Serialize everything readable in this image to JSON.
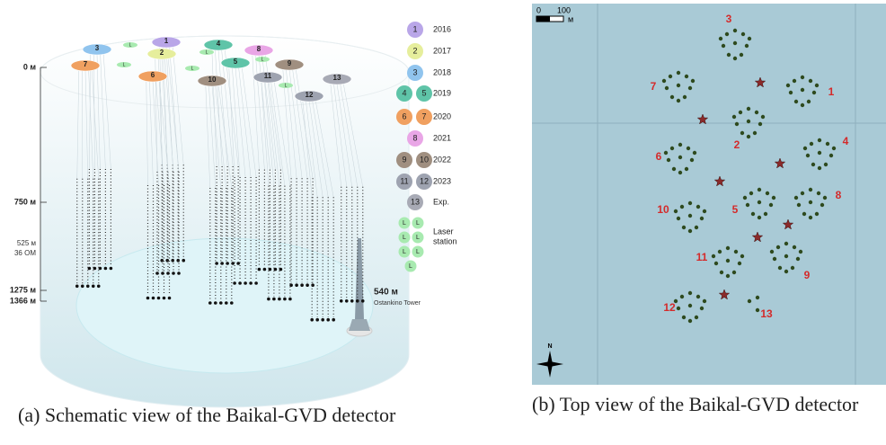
{
  "panel_a": {
    "depth_labels": [
      "0 м",
      "750 м",
      "1275 м",
      "1366 м"
    ],
    "span_labels": [
      "525 м",
      "36 OM"
    ],
    "tower": {
      "height": "540 м",
      "name": "Ostankino Tower"
    },
    "clusters": [
      "1",
      "2",
      "3",
      "4",
      "5",
      "6",
      "7",
      "8",
      "9",
      "10",
      "11",
      "12",
      "13"
    ],
    "legend": [
      {
        "badges": [
          "1"
        ],
        "year": "2016"
      },
      {
        "badges": [
          "2"
        ],
        "year": "2017"
      },
      {
        "badges": [
          "3"
        ],
        "year": "2018"
      },
      {
        "badges": [
          "4",
          "5"
        ],
        "year": "2019"
      },
      {
        "badges": [
          "6",
          "7"
        ],
        "year": "2020"
      },
      {
        "badges": [
          "8"
        ],
        "year": "2021"
      },
      {
        "badges": [
          "9",
          "10"
        ],
        "year": "2022"
      },
      {
        "badges": [
          "11",
          "12"
        ],
        "year": "2023"
      },
      {
        "badges": [
          "13"
        ],
        "year": "Exp."
      }
    ],
    "laser": {
      "badge": "L",
      "label_lines": [
        "Laser",
        "station"
      ]
    },
    "caption": "(a) Schematic view of the Baikal-GVD detector"
  },
  "panel_b": {
    "scale": [
      "0",
      "100",
      "м"
    ],
    "clusters": [
      "1",
      "2",
      "3",
      "4",
      "5",
      "6",
      "7",
      "8",
      "9",
      "10",
      "11",
      "12",
      "13"
    ],
    "north": "N",
    "caption": "(b) Top view of the Baikal-GVD detector"
  }
}
